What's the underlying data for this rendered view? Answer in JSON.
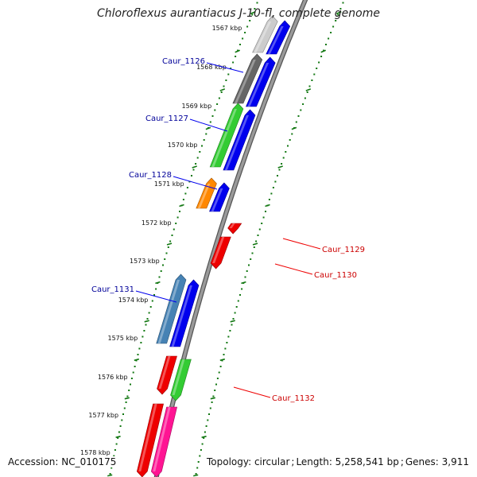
{
  "title": "Chloroflexus aurantiacus J-10-fl, complete genome",
  "colors": {
    "backbone": "#808080",
    "tick": "#117711",
    "forward": "#0000ee",
    "gene_label_forward": "#000099",
    "gene_label_reverse": "#cc0000",
    "cds_gray_light": "#cccccc",
    "cds_gray_dark": "#666666",
    "cds_green": "#33cc33",
    "cds_orange": "#ff8800",
    "cds_steelblue": "#4682b4",
    "cds_red": "#ee0000",
    "cds_pink": "#ff1493"
  },
  "scale": {
    "unit": "kbp",
    "tick_labels": [
      "1567 kbp",
      "1568 kbp",
      "1569 kbp",
      "1570 kbp",
      "1571 kbp",
      "1572 kbp",
      "1573 kbp",
      "1574 kbp",
      "1575 kbp",
      "1576 kbp",
      "1577 kbp",
      "1578 kbp"
    ]
  },
  "genes": [
    {
      "label": "Caur_1126",
      "strand": "forward"
    },
    {
      "label": "Caur_1127",
      "strand": "forward"
    },
    {
      "label": "Caur_1128",
      "strand": "forward"
    },
    {
      "label": "Caur_1129",
      "strand": "reverse"
    },
    {
      "label": "Caur_1130",
      "strand": "reverse"
    },
    {
      "label": "Caur_1131",
      "strand": "forward"
    },
    {
      "label": "Caur_1132",
      "strand": "reverse"
    }
  ],
  "footer": {
    "accession": "Accession: NC_010175",
    "topology": "Topology: circular",
    "length": "Length: 5,258,541 bp",
    "genes": "Genes: 3,911"
  }
}
